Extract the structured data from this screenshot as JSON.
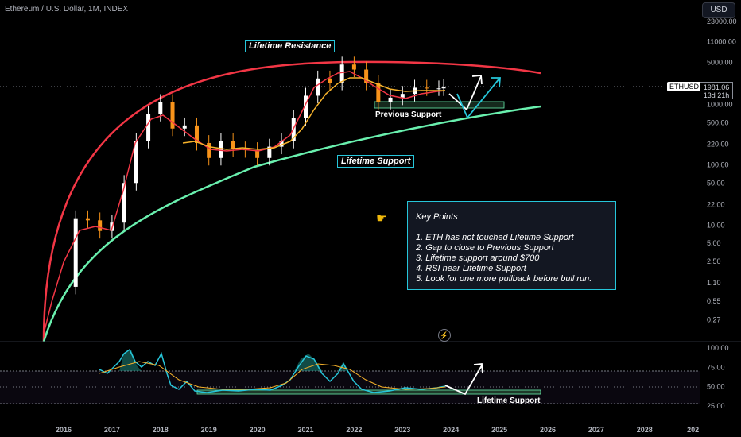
{
  "header": {
    "symbol_line": "Ethereum / U.S. Dollar, 1M, INDEX"
  },
  "currency_button": "USD",
  "price_tag": {
    "symbol": "ETHUSD",
    "price": "1981.06",
    "countdown": "13d 21h"
  },
  "price_axis_labels": [
    "23000.00",
    "11000.00",
    "5000.00",
    "2000.00",
    "1000.00",
    "500.00",
    "220.00",
    "100.00",
    "50.00",
    "22.00",
    "10.00",
    "5.00",
    "2.50",
    "1.10",
    "0.55",
    "0.27"
  ],
  "rsi_axis_labels": [
    "100.00",
    "75.00",
    "50.00",
    "25.00"
  ],
  "time_axis_labels": [
    "2016",
    "2017",
    "2018",
    "2019",
    "2020",
    "2021",
    "2022",
    "2023",
    "2024",
    "2025",
    "2026",
    "2027",
    "2028",
    "202"
  ],
  "annotations": {
    "lifetime_resistance": "Lifetime Resistance",
    "lifetime_support": "Lifetime Support",
    "previous_support": "Previous Support",
    "rsi_lifetime_support": "Lifetime Support"
  },
  "key_points": {
    "title": "Key Points",
    "items": [
      "1. ETH has not touched Lifetime Support",
      "2. Gap to close to Previous Support",
      "3. Lifetime support around $700",
      "4. RSI near Lifetime Support",
      "5. Look for one more pullback before bull run."
    ]
  },
  "colors": {
    "up": "#ffffff",
    "down": "#f7931a",
    "resistance": "#f23645",
    "support": "#69f0ae",
    "ema_fast": "#f23645",
    "ema_slow": "#f7b32b",
    "rsi": "#26c6da",
    "rsi_ma": "#f7b32b",
    "accent": "#26c6da"
  },
  "chart_data": {
    "type": "candlestick",
    "scale": "log",
    "ylim": [
      0.27,
      23000
    ],
    "x": [
      2016.0,
      2016.25,
      2016.5,
      2016.75,
      2017.0,
      2017.25,
      2017.5,
      2017.75,
      2018.0,
      2018.25,
      2018.5,
      2018.75,
      2019.0,
      2019.25,
      2019.5,
      2019.75,
      2020.0,
      2020.25,
      2020.5,
      2020.75,
      2021.0,
      2021.25,
      2021.5,
      2021.75,
      2022.0,
      2022.25,
      2022.5,
      2022.75,
      2023.0,
      2023.25,
      2023.5,
      2023.75,
      2023.85
    ],
    "close": [
      0.95,
      13,
      12,
      8,
      11,
      50,
      250,
      700,
      1100,
      400,
      450,
      230,
      130,
      250,
      180,
      175,
      130,
      200,
      250,
      600,
      1400,
      2700,
      2300,
      4600,
      3800,
      2300,
      1100,
      1300,
      1500,
      1900,
      1850,
      1850,
      1981
    ],
    "rsi": [
      60,
      90,
      80,
      70,
      72,
      84,
      86,
      95,
      92,
      58,
      52,
      46,
      44,
      48,
      47,
      46,
      45,
      49,
      52,
      64,
      82,
      86,
      72,
      84,
      70,
      47,
      40,
      45,
      47,
      49,
      48,
      48,
      53
    ],
    "rsi_ylim": [
      25,
      100
    ],
    "rsi_levels": [
      70,
      50,
      30
    ]
  }
}
